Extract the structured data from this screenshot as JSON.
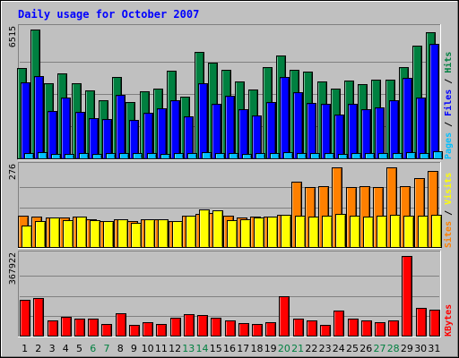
{
  "chart_data": {
    "type": "bar",
    "title": "Daily usage for October 2007",
    "colors": {
      "frame": "#c0c0c0",
      "title": "#0000ff",
      "hits": "#008040",
      "files": "#0000ff",
      "pages": "#00c0ff",
      "visits": "#ffff00",
      "sites": "#ff8000",
      "kbytes": "#ff0000",
      "weekend_label": "#008040"
    },
    "x": [
      "1",
      "2",
      "3",
      "4",
      "5",
      "6",
      "7",
      "8",
      "9",
      "10",
      "11",
      "12",
      "13",
      "14",
      "15",
      "16",
      "17",
      "18",
      "19",
      "20",
      "21",
      "22",
      "23",
      "24",
      "25",
      "26",
      "27",
      "28",
      "29",
      "30",
      "31"
    ],
    "weekend_days": [
      "6",
      "7",
      "13",
      "14",
      "20",
      "21",
      "27",
      "28"
    ],
    "panels": [
      {
        "id": "hits-files-pages",
        "ymax_label": "6515",
        "ymax": 6515,
        "legend": [
          "Pages",
          "Files",
          "Hits"
        ],
        "legend_separator": " / ",
        "series": [
          {
            "name": "Hits",
            "color": "#008040",
            "values": [
              4580,
              6515,
              3820,
              4280,
              3800,
              3450,
              2940,
              4100,
              2840,
              3410,
              3520,
              4420,
              3110,
              5380,
              4860,
              4500,
              3900,
              3500,
              4600,
              5220,
              4460,
              4380,
              3880,
              3520,
              3930,
              3770,
              3960,
              3990,
              4620,
              5720,
              6380
            ]
          },
          {
            "name": "Files",
            "color": "#0000ff",
            "values": [
              3860,
              4180,
              2400,
              3060,
              2370,
              2050,
              1990,
              3230,
              1930,
              2300,
              2550,
              2920,
              2110,
              3780,
              2760,
              3170,
              2500,
              2180,
              2830,
              4110,
              3340,
              2800,
              2760,
              2220,
              2780,
              2510,
              2600,
              2930,
              4060,
              3060,
              5800
            ]
          },
          {
            "name": "Pages",
            "color": "#00c0ff",
            "values": [
              250,
              300,
              230,
              240,
              280,
              230,
              250,
              280,
              260,
              260,
              240,
              250,
              250,
              300,
              260,
              260,
              220,
              250,
              270,
              320,
              270,
              270,
              250,
              240,
              260,
              250,
              250,
              250,
              310,
              260,
              370
            ]
          }
        ]
      },
      {
        "id": "visits-sites",
        "ymax_label": "276",
        "ymax": 276,
        "legend": [
          "Sites",
          "Visits"
        ],
        "legend_separator": " / ",
        "series": [
          {
            "name": "Sites",
            "color": "#ff8000",
            "values": [
              108,
              104,
              101,
              102,
              104,
              97,
              89,
              97,
              89,
              97,
              97,
              90,
              107,
              116,
              119,
              108,
              101,
              104,
              104,
              111,
              227,
              209,
              211,
              276,
              207,
              212,
              209,
              276,
              210,
              238,
              265
            ]
          },
          {
            "name": "Visits",
            "color": "#ffff00",
            "values": [
              75,
              90,
              101,
              92,
              104,
              92,
              89,
              97,
              84,
              97,
              97,
              90,
              107,
              131,
              126,
              93,
              97,
              101,
              104,
              111,
              108,
              105,
              109,
              115,
              107,
              104,
              109,
              111,
              109,
              107,
              112
            ]
          }
        ]
      },
      {
        "id": "kbytes",
        "ymax_label": "367922",
        "ymax": 367922,
        "legend": [
          "KBytes"
        ],
        "legend_separator": "",
        "series": [
          {
            "name": "KBytes",
            "color": "#ff0000",
            "values": [
              165000,
              174000,
              71000,
              86000,
              80000,
              80000,
              55000,
              105000,
              50000,
              63000,
              55000,
              82000,
              100000,
              94000,
              84000,
              71000,
              59000,
              54000,
              63000,
              180000,
              77000,
              71000,
              50000,
              115000,
              80000,
              71000,
              60000,
              71000,
              367922,
              130000,
              120000
            ]
          }
        ]
      }
    ]
  }
}
